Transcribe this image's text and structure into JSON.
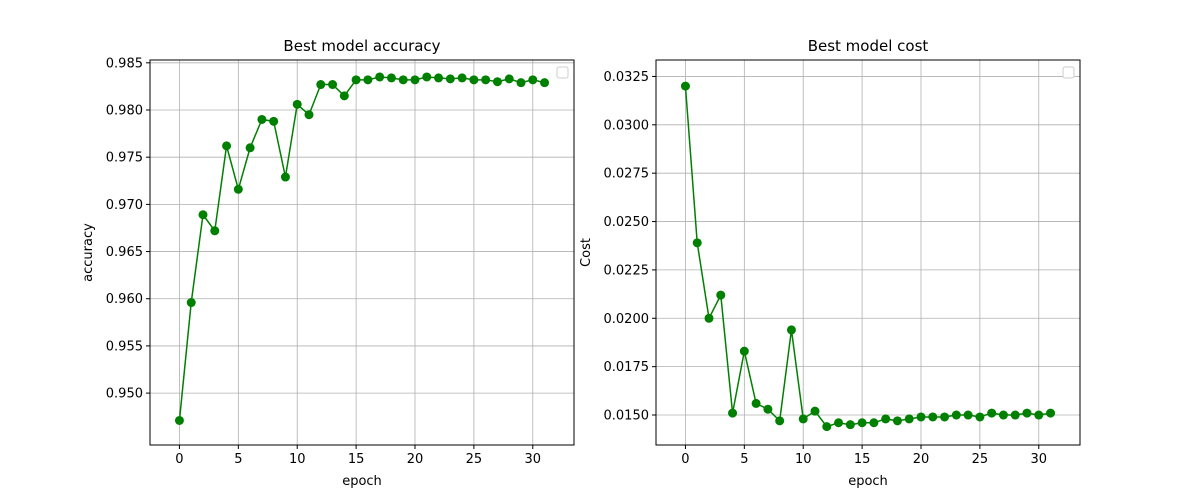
{
  "chart_data": [
    {
      "type": "line",
      "title": "Best model accuracy",
      "xlabel": "epoch",
      "ylabel": "accuracy",
      "xlim": [
        -2.5,
        33.5
      ],
      "ylim": [
        0.9445,
        0.9853
      ],
      "xticks": [
        "0",
        "5",
        "10",
        "15",
        "20",
        "25",
        "30"
      ],
      "yticks": [
        "0.950",
        "0.955",
        "0.960",
        "0.965",
        "0.970",
        "0.975",
        "0.980",
        "0.985"
      ],
      "grid": true,
      "legend": "top-right (empty)",
      "color": "#008000",
      "marker": "circle",
      "x": [
        0,
        1,
        2,
        3,
        4,
        5,
        6,
        7,
        8,
        9,
        10,
        11,
        12,
        13,
        14,
        15,
        16,
        17,
        18,
        19,
        20,
        21,
        22,
        23,
        24,
        25,
        26,
        27,
        28,
        29,
        30,
        31
      ],
      "values": [
        0.9471,
        0.9596,
        0.9689,
        0.9672,
        0.9762,
        0.9716,
        0.976,
        0.979,
        0.9788,
        0.9729,
        0.9806,
        0.9795,
        0.9827,
        0.9827,
        0.9815,
        0.9832,
        0.9832,
        0.9835,
        0.9834,
        0.9832,
        0.9832,
        0.9835,
        0.9834,
        0.9833,
        0.9834,
        0.9832,
        0.9832,
        0.983,
        0.9833,
        0.9829,
        0.9832,
        0.9829
      ]
    },
    {
      "type": "line",
      "title": "Best model cost",
      "xlabel": "epoch",
      "ylabel": "Cost",
      "xlim": [
        -2.5,
        33.5
      ],
      "ylim": [
        0.01345,
        0.03335
      ],
      "xticks": [
        "0",
        "5",
        "10",
        "15",
        "20",
        "25",
        "30"
      ],
      "yticks": [
        "0.0150",
        "0.0175",
        "0.0200",
        "0.0225",
        "0.0250",
        "0.0275",
        "0.0300",
        "0.0325"
      ],
      "grid": true,
      "legend": "top-right (empty)",
      "color": "#008000",
      "marker": "circle",
      "x": [
        0,
        1,
        2,
        3,
        4,
        5,
        6,
        7,
        8,
        9,
        10,
        11,
        12,
        13,
        14,
        15,
        16,
        17,
        18,
        19,
        20,
        21,
        22,
        23,
        24,
        25,
        26,
        27,
        28,
        29,
        30,
        31
      ],
      "values": [
        0.032,
        0.0239,
        0.02,
        0.0212,
        0.0151,
        0.0183,
        0.0156,
        0.0153,
        0.0147,
        0.0194,
        0.0148,
        0.0152,
        0.0144,
        0.0146,
        0.0145,
        0.0146,
        0.0146,
        0.0148,
        0.0147,
        0.0148,
        0.0149,
        0.0149,
        0.0149,
        0.015,
        0.015,
        0.0149,
        0.0151,
        0.015,
        0.015,
        0.0151,
        0.015,
        0.0151
      ]
    }
  ]
}
